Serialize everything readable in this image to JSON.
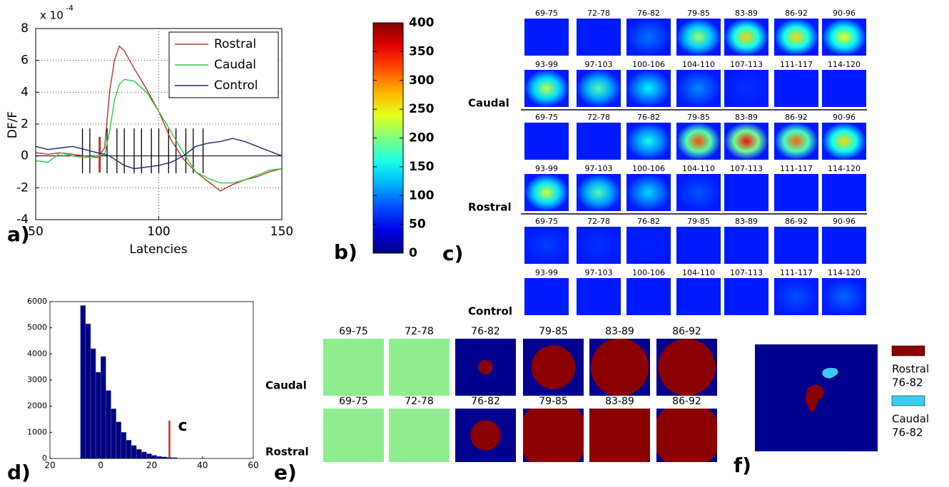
{
  "chart_data": [
    {
      "type": "line",
      "panel": "a)",
      "ylabel": "DF/F",
      "xlabel": "Latencies",
      "exponent_base": "x 10",
      "exponent": "-4",
      "x": [
        50,
        55,
        60,
        65,
        70,
        75,
        78,
        80,
        82,
        84,
        86,
        90,
        95,
        100,
        105,
        110,
        115,
        120,
        125,
        130,
        135,
        140,
        145,
        150
      ],
      "series": [
        {
          "name": "Rostral",
          "color": "#c0302a",
          "values": [
            0.2,
            0.1,
            0.2,
            0.1,
            0,
            -0.1,
            0.5,
            4,
            6,
            6.9,
            6.6,
            5.5,
            4.2,
            2.8,
            1.0,
            -0.2,
            -1.0,
            -1.6,
            -2.2,
            -1.8,
            -1.5,
            -1.3,
            -1.0,
            -0.8
          ]
        },
        {
          "name": "Caudal",
          "color": "#2ecc40",
          "values": [
            -0.3,
            -0.4,
            0.2,
            0,
            -0.1,
            0,
            0.1,
            1.5,
            3.5,
            4.5,
            4.8,
            4.7,
            4.0,
            2.8,
            1.5,
            0.2,
            -1.0,
            -1.4,
            -1.7,
            -1.7,
            -1.5,
            -1.2,
            -0.9,
            -0.8
          ]
        },
        {
          "name": "Control",
          "color": "#1c2a6e",
          "values": [
            0.6,
            0.4,
            0.5,
            0.6,
            0.4,
            0.2,
            0.1,
            0,
            -0.2,
            -0.4,
            -0.6,
            -0.8,
            -0.7,
            -0.6,
            -0.4,
            0,
            0.6,
            0.8,
            0.9,
            1.1,
            0.9,
            0.6,
            0.3,
            0
          ]
        }
      ],
      "xlim": [
        50,
        150
      ],
      "ylim": [
        -4,
        8
      ],
      "xticks": [
        50,
        100,
        150
      ],
      "yticks": [
        -4,
        -2,
        0,
        2,
        4,
        6,
        8
      ],
      "grid": true,
      "legend": "upper right",
      "markers": [
        69,
        72,
        79,
        83,
        86,
        90,
        93,
        97,
        100,
        104,
        107,
        111,
        114,
        118
      ],
      "marker_color": "#000000",
      "highlight_marker": 76,
      "highlight_color": "#c0302a"
    },
    {
      "type": "colorbar",
      "panel": "b)",
      "colormap": "jet",
      "ylim": [
        0,
        400
      ],
      "yticks": [
        0,
        50,
        100,
        150,
        200,
        250,
        300,
        350,
        400
      ]
    },
    {
      "type": "histogram",
      "panel": "d)",
      "color": "#000080",
      "bins": [
        -8,
        -6,
        -4,
        -2,
        0,
        2,
        4,
        6,
        8,
        10,
        12,
        14,
        16,
        18,
        20,
        22,
        24,
        26,
        28,
        30
      ],
      "values": [
        5850,
        5150,
        4200,
        3300,
        3900,
        2600,
        1900,
        1400,
        1000,
        700,
        500,
        350,
        250,
        180,
        120,
        80,
        60,
        40,
        30
      ],
      "xlim": [
        -20,
        60
      ],
      "xticks": [
        {
          "value": -20,
          "label": "20"
        },
        0,
        20,
        40,
        60
      ],
      "ylim": [
        0,
        6000
      ],
      "yticks": [
        0,
        1000,
        2000,
        3000,
        4000,
        5000,
        6000
      ],
      "threshold": 27,
      "threshold_label": "c",
      "threshold_color": "#c0302a"
    }
  ],
  "panel_c": {
    "label": "c)",
    "windows": [
      "69-75",
      "72-78",
      "76-82",
      "79-85",
      "83-89",
      "86-92",
      "90-96",
      "93-99",
      "97-103",
      "100-106",
      "104-110",
      "107-113",
      "111-117",
      "114-120"
    ],
    "groups": [
      "Caudal",
      "Rostral",
      "Control"
    ]
  },
  "panel_e": {
    "label": "e)",
    "windows": [
      "69-75",
      "72-78",
      "76-82",
      "79-85",
      "83-89",
      "86-92"
    ],
    "groups": [
      "Caudal",
      "Rostral"
    ],
    "inactive_color": "#8fec8f",
    "background_color": "#00008f",
    "active_color": "#8b0000"
  },
  "panel_f": {
    "label": "f)",
    "background_color": "#00008f",
    "legend": [
      {
        "name": "Rostral",
        "window": "76-82",
        "color": "#8b0000"
      },
      {
        "name": "Caudal",
        "window": "76-82",
        "color": "#3ccbf0"
      }
    ]
  }
}
